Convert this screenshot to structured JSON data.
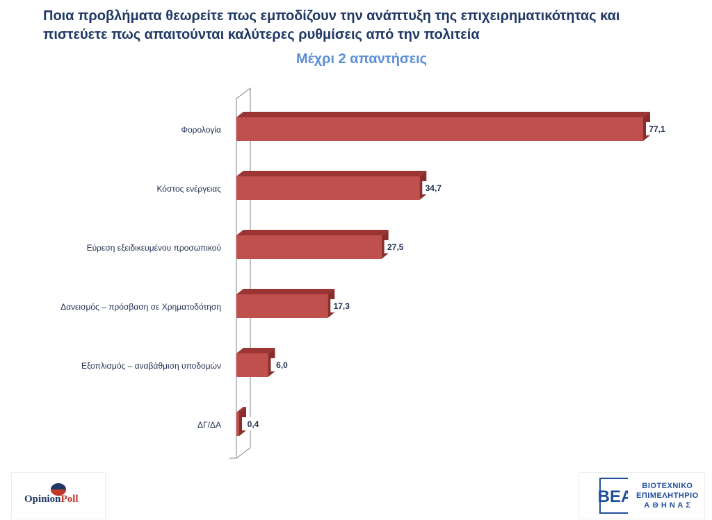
{
  "page": {
    "title_line1": "Ποια προβλήματα θεωρείτε πως εμποδίζουν την ανάπτυξη της επιχειρηματικότητας και",
    "title_line2": "πιστεύετε πως απαιτούνται καλύτερες ρυθμίσεις από την πολιτεία",
    "subtitle": "Μέχρι 2 απαντήσεις"
  },
  "colors": {
    "bar_front": "#c0504d",
    "bar_top": "#9b3533",
    "bar_side": "#8a2e2c",
    "title": "#1f3864",
    "subtitle": "#5b8fd6"
  },
  "chart_data": {
    "type": "bar",
    "orientation": "horizontal",
    "style": "3d",
    "categories": [
      "Φορολογία",
      "Κόστος ενέργειας",
      "Εύρεση εξειδικευμένου προσωπικού",
      "Δανεισμός – πρόσβαση σε Χρηματοδότηση",
      "Εξοπλισμός – αναβάθμιση υποδομών",
      "ΔΓ/ΔΑ"
    ],
    "values": [
      77.1,
      34.7,
      27.5,
      17.3,
      6.0,
      0.4
    ],
    "value_labels": [
      "77,1",
      "34,7",
      "27,5",
      "17,3",
      "6,0",
      "0,4"
    ],
    "xlim": [
      0,
      80
    ],
    "grid": false,
    "legend": "none"
  },
  "logos": {
    "left_brand": "OpinionPoll",
    "right_lines": [
      "ΒΙΟΤΕΧΝΙΚΟ",
      "ΕΠΙΜΕΛΗΤΗΡΙΟ",
      "Α Θ Η Ν Α Σ"
    ]
  }
}
